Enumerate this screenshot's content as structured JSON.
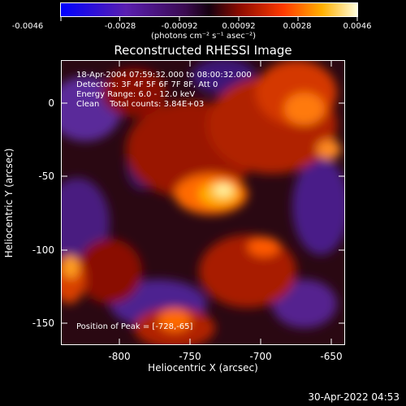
{
  "colorbar": {
    "ticks": [
      "-0.0046",
      "-0.0028",
      "-0.00092",
      "0.00092",
      "0.0028",
      "0.0046"
    ],
    "units": "(photons cm⁻² s⁻¹ asec⁻²)"
  },
  "title": "Reconstructed RHESSI Image",
  "info": {
    "line1": "18-Apr-2004 07:59:32.000 to 08:00:32.000",
    "line2": "Detectors: 3F 4F 5F 6F 7F 8F, Att 0",
    "line3": "Energy Range: 6.0 - 12.0 keV",
    "line4": "Clean    Total counts: 3.84E+03",
    "peak": "Position of Peak = [-728,-65]"
  },
  "axes": {
    "xlabel": "Heliocentric X (arcsec)",
    "ylabel": "Heliocentric Y (arcsec)",
    "xticks": [
      "-800",
      "-750",
      "-700",
      "-650"
    ],
    "yticks": [
      "0",
      "-50",
      "-100",
      "-150"
    ],
    "xlim": [
      -840,
      -640
    ],
    "ylim": [
      -170,
      25
    ]
  },
  "footer": {
    "date": "30-Apr-2022 04:53"
  },
  "colors": {
    "background": "#000000",
    "text": "#ffffff"
  }
}
